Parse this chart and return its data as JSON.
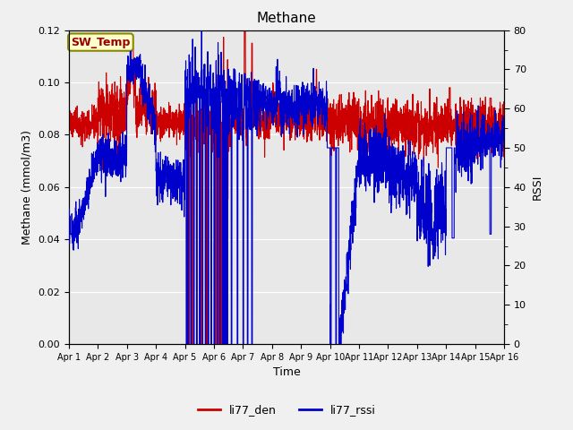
{
  "title": "Methane",
  "xlabel": "Time",
  "ylabel_left": "Methane (mmol/m3)",
  "ylabel_right": "RSSI",
  "ylim_left": [
    0.0,
    0.12
  ],
  "ylim_right": [
    0,
    80
  ],
  "yticks_left": [
    0.0,
    0.02,
    0.04,
    0.06,
    0.08,
    0.1,
    0.12
  ],
  "yticks_right": [
    0,
    10,
    20,
    30,
    40,
    50,
    60,
    70,
    80
  ],
  "x_tick_labels": [
    "Apr 1",
    "Apr 2",
    "Apr 3",
    "Apr 4",
    "Apr 5",
    "Apr 6",
    "Apr 7",
    "Apr 8",
    "Apr 9",
    "Apr 10",
    "Apr 11",
    "Apr 12",
    "Apr 13",
    "Apr 14",
    "Apr 15",
    "Apr 16"
  ],
  "color_den": "#cc0000",
  "color_rssi": "#0000cc",
  "bg_color": "#e8e8e8",
  "annotation_text": "SW_Temp",
  "annotation_color": "#990000",
  "annotation_bg": "#ffffcc",
  "annotation_border": "#888800",
  "linewidth": 0.8,
  "figsize": [
    6.4,
    4.8
  ],
  "dpi": 100
}
